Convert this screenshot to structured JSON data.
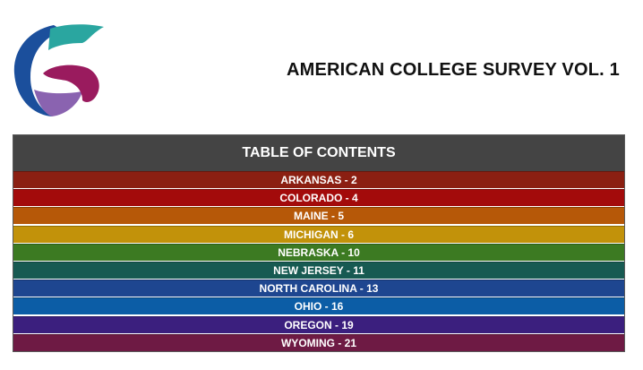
{
  "document": {
    "title": "AMERICAN COLLEGE SURVEY VOL. 1"
  },
  "logo": {
    "icon": "stylized-g-logo-icon",
    "colors": [
      "#1b4f9c",
      "#2aa6a0",
      "#9a1b5e",
      "#8a63b0"
    ]
  },
  "toc": {
    "heading": "TABLE OF CONTENTS",
    "entries": [
      {
        "label": "ARKANSAS - 2",
        "color": "#8b1f12"
      },
      {
        "label": "COLORADO - 4",
        "color": "#a30b0b"
      },
      {
        "label": "MAINE - 5",
        "color": "#b65808"
      },
      {
        "label": "MICHIGAN - 6",
        "color": "#c2920a"
      },
      {
        "label": "NEBRASKA - 10",
        "color": "#3c7a22"
      },
      {
        "label": "NEW JERSEY - 11",
        "color": "#175a52"
      },
      {
        "label": "NORTH CAROLINA - 13",
        "color": "#1e4690"
      },
      {
        "label": "OHIO - 16",
        "color": "#0c5da6"
      },
      {
        "label": "OREGON - 19",
        "color": "#3b1f7e"
      },
      {
        "label": "WYOMING - 21",
        "color": "#6e1a44"
      }
    ]
  }
}
